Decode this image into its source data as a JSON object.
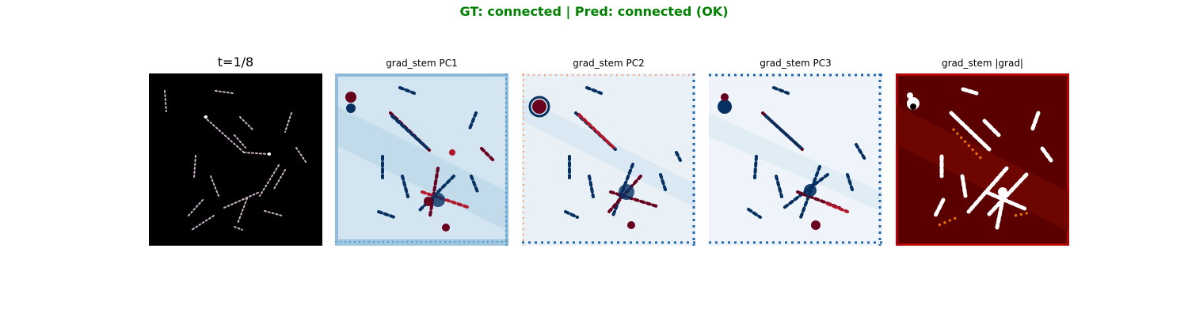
{
  "figure": {
    "suptitle": "GT: connected | Pred: connected (OK)",
    "suptitle_color": "#008000"
  },
  "panels": [
    {
      "title": "t=1/8",
      "kind": "input",
      "colormap": "gray"
    },
    {
      "title": "grad_stem PC1",
      "kind": "pc",
      "colormap": "RdBu_r"
    },
    {
      "title": "grad_stem PC2",
      "kind": "pc",
      "colormap": "RdBu_r"
    },
    {
      "title": "grad_stem PC3",
      "kind": "pc",
      "colormap": "RdBu_r"
    },
    {
      "title": "grad_stem |grad|",
      "kind": "magnitude",
      "colormap": "gist_heat"
    }
  ]
}
